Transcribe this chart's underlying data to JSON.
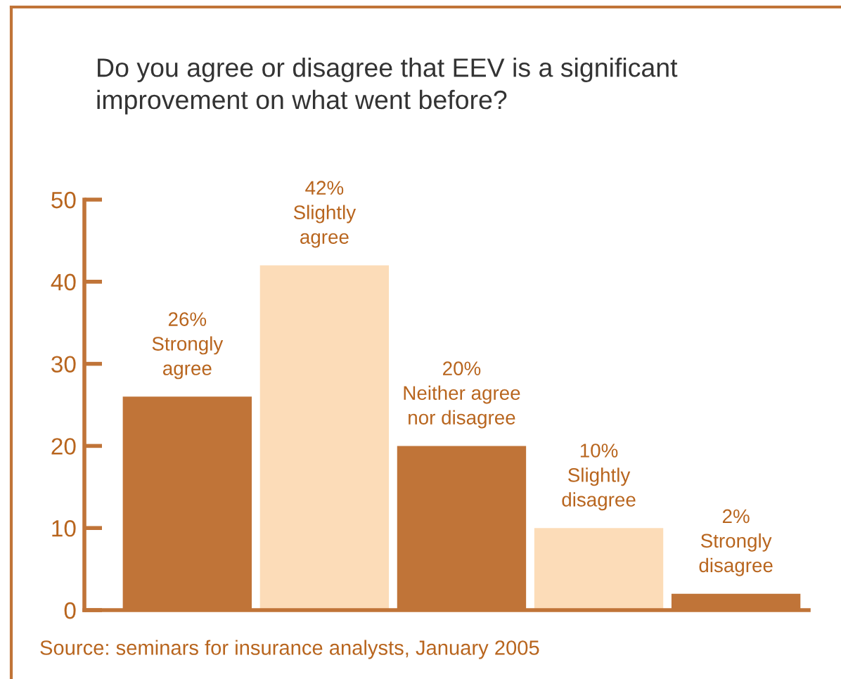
{
  "chart_data": {
    "type": "bar",
    "title": "Do you agree or disagree that EEV is a significant\nimprovement on what went before?",
    "categories": [
      null,
      null,
      null,
      null,
      null
    ],
    "values": [
      26,
      42,
      20,
      10,
      2
    ],
    "value_labels": [
      "26%\nStrongly\nagree",
      "42%\nSlightly\nagree",
      "20%\nNeither agree\nnor disagree",
      "10%\nSlightly\ndisagree",
      "2%\nStrongly\ndisagree"
    ],
    "colors": [
      "#c07438",
      "#fcdcb8",
      "#c07438",
      "#fcdcb8",
      "#c07438"
    ],
    "ylim": [
      0,
      50
    ],
    "yticks": [
      0,
      10,
      20,
      30,
      40,
      50
    ],
    "annotations": [
      "Source: seminars for insurance analysts, January 2005"
    ]
  }
}
